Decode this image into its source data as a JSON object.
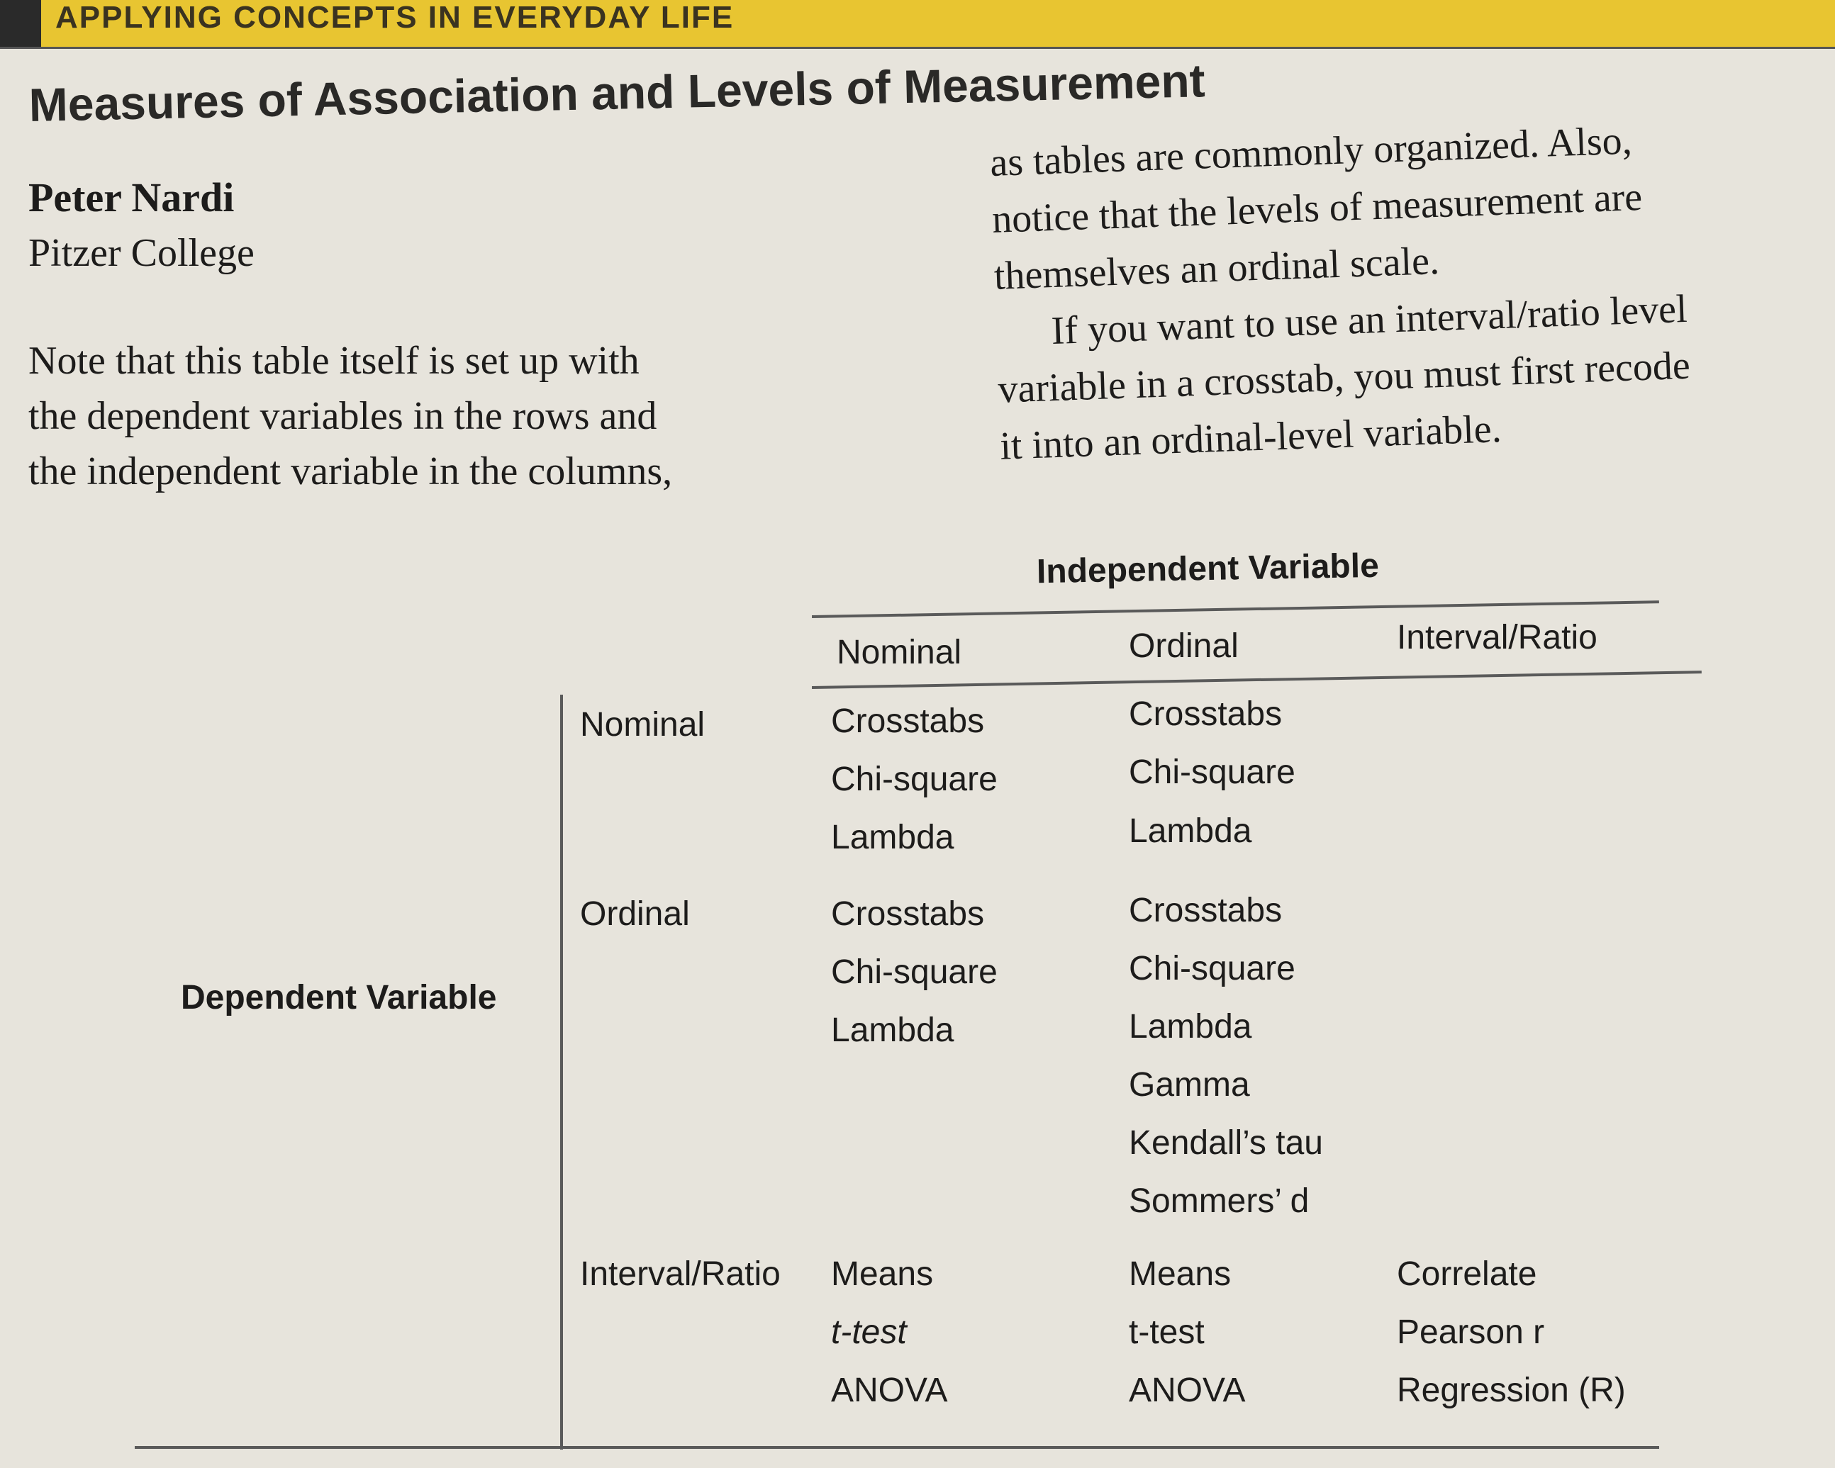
{
  "banner": {
    "text": "APPLYING CONCEPTS IN EVERYDAY LIFE"
  },
  "title": "Measures of Association and Levels of Measurement",
  "author": {
    "name": "Peter Nardi",
    "affiliation": "Pitzer College"
  },
  "left_paragraph": [
    "Note that this table itself is set up with",
    "the dependent variables in the rows and",
    "the independent variable in the columns,"
  ],
  "right_paragraph": [
    "as tables are commonly organized. Also,",
    "notice that the levels of measurement are",
    "themselves an ordinal scale."
  ],
  "right_paragraph2": [
    "If you want to use an interval/ratio level",
    "variable in a crosstab, you must first recode",
    "it into an ordinal-level variable."
  ],
  "table": {
    "independent_label": "Independent Variable",
    "dependent_label": "Dependent Variable",
    "columns": [
      "Nominal",
      "Ordinal",
      "Interval/Ratio"
    ],
    "rows": [
      {
        "label": "Nominal",
        "cells": [
          [
            "Crosstabs",
            "Chi-square",
            "Lambda"
          ],
          [
            "Crosstabs",
            "Chi-square",
            "Lambda"
          ],
          []
        ]
      },
      {
        "label": "Ordinal",
        "cells": [
          [
            "Crosstabs",
            "Chi-square",
            "Lambda"
          ],
          [
            "Crosstabs",
            "Chi-square",
            "Lambda",
            "Gamma",
            "Kendall’s tau",
            "Sommers’ d"
          ],
          []
        ]
      },
      {
        "label": "Interval/Ratio",
        "cells": [
          [
            "Means",
            "t-test",
            "ANOVA"
          ],
          [
            "Means",
            "t-test",
            "ANOVA"
          ],
          [
            "Correlate",
            "Pearson r",
            "Regression (R)"
          ]
        ]
      }
    ]
  }
}
